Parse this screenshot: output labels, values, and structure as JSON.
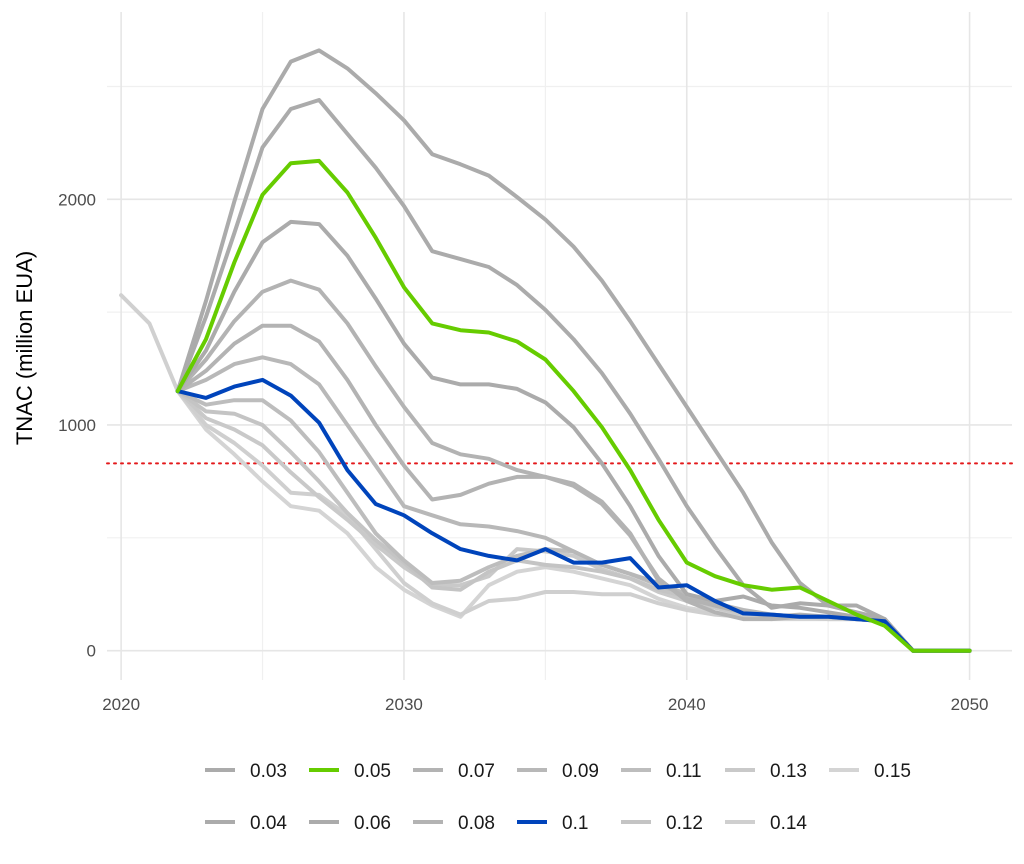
{
  "chart_data": {
    "type": "line",
    "title": "",
    "xlabel": "",
    "ylabel": "TNAC (million EUA)",
    "xlim": [
      2019.5,
      2051.5
    ],
    "ylim": [
      -130,
      2830
    ],
    "xticks": [
      2020,
      2030,
      2040,
      2050
    ],
    "yticks": [
      0,
      1000,
      2000
    ],
    "grid": true,
    "legend_position": "bottom",
    "reference_line": {
      "y": 830,
      "color": "#e31a1c",
      "style": "dotted"
    },
    "colors": {
      "grey": "#ababab",
      "green": "#66cc00",
      "blue": "#0044bb",
      "light": "#d0d0d0"
    },
    "history": {
      "x": [
        2020,
        2021,
        2022
      ],
      "y": [
        1575,
        1450,
        1150
      ]
    },
    "series": [
      {
        "name": "0.03",
        "color": "#ababab",
        "x": [
          2022,
          2023,
          2024,
          2025,
          2026,
          2027,
          2028,
          2029,
          2030,
          2031,
          2032,
          2033,
          2034,
          2035,
          2036,
          2037,
          2038,
          2039,
          2040,
          2041,
          2042,
          2043,
          2044,
          2045,
          2046,
          2047,
          2048,
          2049,
          2050
        ],
        "y": [
          1150,
          1550,
          1990,
          2400,
          2610,
          2660,
          2580,
          2470,
          2350,
          2200,
          2155,
          2105,
          2010,
          1910,
          1790,
          1640,
          1460,
          1270,
          1080,
          890,
          700,
          480,
          300,
          200,
          170,
          140,
          0,
          0,
          0
        ]
      },
      {
        "name": "0.04",
        "color": "#ababab",
        "x": [
          2022,
          2023,
          2024,
          2025,
          2026,
          2027,
          2028,
          2029,
          2030,
          2031,
          2032,
          2033,
          2034,
          2035,
          2036,
          2037,
          2038,
          2039,
          2040,
          2041,
          2042,
          2043,
          2044,
          2045,
          2046,
          2047,
          2048,
          2049,
          2050
        ],
        "y": [
          1150,
          1480,
          1850,
          2230,
          2400,
          2440,
          2290,
          2140,
          1970,
          1770,
          1735,
          1700,
          1620,
          1510,
          1380,
          1230,
          1050,
          850,
          640,
          460,
          290,
          190,
          210,
          200,
          200,
          140,
          0,
          0,
          0
        ]
      },
      {
        "name": "0.05",
        "color": "#66cc00",
        "x": [
          2022,
          2023,
          2024,
          2025,
          2026,
          2027,
          2028,
          2029,
          2030,
          2031,
          2032,
          2033,
          2034,
          2035,
          2036,
          2037,
          2038,
          2039,
          2040,
          2041,
          2042,
          2043,
          2044,
          2045,
          2046,
          2047,
          2048,
          2049,
          2050
        ],
        "y": [
          1150,
          1380,
          1720,
          2020,
          2160,
          2170,
          2030,
          1830,
          1610,
          1450,
          1420,
          1410,
          1370,
          1290,
          1150,
          990,
          800,
          580,
          390,
          330,
          290,
          270,
          280,
          220,
          160,
          110,
          0,
          0,
          0
        ]
      },
      {
        "name": "0.06",
        "color": "#ababab",
        "x": [
          2022,
          2023,
          2024,
          2025,
          2026,
          2027,
          2028,
          2029,
          2030,
          2031,
          2032,
          2033,
          2034,
          2035,
          2036,
          2037,
          2038,
          2039,
          2040,
          2041,
          2042,
          2043,
          2044,
          2045,
          2046,
          2047,
          2048,
          2049,
          2050
        ],
        "y": [
          1150,
          1330,
          1590,
          1810,
          1900,
          1890,
          1750,
          1560,
          1360,
          1210,
          1180,
          1180,
          1160,
          1100,
          990,
          830,
          640,
          420,
          250,
          220,
          240,
          200,
          190,
          170,
          150,
          140,
          0,
          0,
          0
        ]
      },
      {
        "name": "0.07",
        "color": "#b3b3b3",
        "x": [
          2022,
          2023,
          2024,
          2025,
          2026,
          2027,
          2028,
          2029,
          2030,
          2031,
          2032,
          2033,
          2034,
          2035,
          2036,
          2037,
          2038,
          2039,
          2040,
          2041,
          2042,
          2043,
          2044,
          2045,
          2046,
          2047,
          2048,
          2049,
          2050
        ],
        "y": [
          1150,
          1290,
          1460,
          1590,
          1640,
          1600,
          1450,
          1260,
          1080,
          920,
          870,
          850,
          800,
          770,
          740,
          660,
          520,
          310,
          230,
          200,
          170,
          150,
          160,
          150,
          150,
          140,
          0,
          0,
          0
        ]
      },
      {
        "name": "0.08",
        "color": "#b3b3b3",
        "x": [
          2022,
          2023,
          2024,
          2025,
          2026,
          2027,
          2028,
          2029,
          2030,
          2031,
          2032,
          2033,
          2034,
          2035,
          2036,
          2037,
          2038,
          2039,
          2040,
          2041,
          2042,
          2043,
          2044,
          2045,
          2046,
          2047,
          2048,
          2049,
          2050
        ],
        "y": [
          1150,
          1240,
          1360,
          1440,
          1440,
          1370,
          1200,
          1000,
          820,
          670,
          690,
          740,
          770,
          770,
          730,
          650,
          510,
          320,
          220,
          170,
          140,
          140,
          150,
          150,
          140,
          130,
          0,
          0,
          0
        ]
      },
      {
        "name": "0.09",
        "color": "#b8b8b8",
        "x": [
          2022,
          2023,
          2024,
          2025,
          2026,
          2027,
          2028,
          2029,
          2030,
          2031,
          2032,
          2033,
          2034,
          2035,
          2036,
          2037,
          2038,
          2039,
          2040,
          2041,
          2042,
          2043,
          2044,
          2045,
          2046,
          2047,
          2048,
          2049,
          2050
        ],
        "y": [
          1150,
          1200,
          1270,
          1300,
          1270,
          1180,
          1000,
          820,
          640,
          600,
          560,
          550,
          530,
          500,
          440,
          380,
          340,
          300,
          250,
          210,
          180,
          160,
          150,
          150,
          140,
          130,
          0,
          0,
          0
        ]
      },
      {
        "name": "0.1",
        "color": "#0044bb",
        "x": [
          2022,
          2023,
          2024,
          2025,
          2026,
          2027,
          2028,
          2029,
          2030,
          2031,
          2032,
          2033,
          2034,
          2035,
          2036,
          2037,
          2038,
          2039,
          2040,
          2041,
          2042,
          2043,
          2044,
          2045,
          2046,
          2047,
          2048,
          2049,
          2050
        ],
        "y": [
          1150,
          1120,
          1170,
          1200,
          1130,
          1010,
          800,
          650,
          600,
          520,
          450,
          420,
          400,
          450,
          390,
          390,
          410,
          280,
          290,
          220,
          165,
          160,
          150,
          150,
          140,
          130,
          0,
          0,
          0
        ]
      },
      {
        "name": "0.11",
        "color": "#bdbdbd",
        "x": [
          2022,
          2023,
          2024,
          2025,
          2026,
          2027,
          2028,
          2029,
          2030,
          2031,
          2032,
          2033,
          2034,
          2035,
          2036,
          2037,
          2038,
          2039,
          2040,
          2041,
          2042,
          2043,
          2044,
          2045,
          2046,
          2047,
          2048,
          2049,
          2050
        ],
        "y": [
          1150,
          1090,
          1110,
          1110,
          1020,
          880,
          700,
          520,
          400,
          300,
          310,
          370,
          420,
          450,
          440,
          380,
          340,
          290,
          250,
          200,
          170,
          160,
          150,
          150,
          140,
          130,
          0,
          0,
          0
        ]
      },
      {
        "name": "0.12",
        "color": "#c4c4c4",
        "x": [
          2022,
          2023,
          2024,
          2025,
          2026,
          2027,
          2028,
          2029,
          2030,
          2031,
          2032,
          2033,
          2034,
          2035,
          2036,
          2037,
          2038,
          2039,
          2040,
          2041,
          2042,
          2043,
          2044,
          2045,
          2046,
          2047,
          2048,
          2049,
          2050
        ],
        "y": [
          1150,
          1060,
          1050,
          1000,
          880,
          750,
          610,
          490,
          390,
          280,
          270,
          350,
          400,
          380,
          370,
          350,
          320,
          270,
          240,
          200,
          170,
          150,
          150,
          150,
          140,
          130,
          0,
          0,
          0
        ]
      },
      {
        "name": "0.13",
        "color": "#c9c9c9",
        "x": [
          2022,
          2023,
          2024,
          2025,
          2026,
          2027,
          2028,
          2029,
          2030,
          2031,
          2032,
          2033,
          2034,
          2035,
          2036,
          2037,
          2038,
          2039,
          2040,
          2041,
          2042,
          2043,
          2044,
          2045,
          2046,
          2047,
          2048,
          2049,
          2050
        ],
        "y": [
          1150,
          1030,
          980,
          910,
          790,
          680,
          580,
          470,
          370,
          290,
          290,
          330,
          450,
          440,
          420,
          360,
          320,
          260,
          220,
          190,
          160,
          150,
          150,
          150,
          140,
          130,
          0,
          0,
          0
        ]
      },
      {
        "name": "0.14",
        "color": "#cfcfcf",
        "x": [
          2022,
          2023,
          2024,
          2025,
          2026,
          2027,
          2028,
          2029,
          2030,
          2031,
          2032,
          2033,
          2034,
          2035,
          2036,
          2037,
          2038,
          2039,
          2040,
          2041,
          2042,
          2043,
          2044,
          2045,
          2046,
          2047,
          2048,
          2049,
          2050
        ],
        "y": [
          1150,
          1000,
          920,
          820,
          700,
          690,
          600,
          450,
          300,
          210,
          160,
          220,
          230,
          260,
          260,
          250,
          250,
          210,
          180,
          160,
          150,
          150,
          150,
          140,
          140,
          130,
          0,
          0,
          0
        ]
      },
      {
        "name": "0.15",
        "color": "#d4d4d4",
        "x": [
          2022,
          2023,
          2024,
          2025,
          2026,
          2027,
          2028,
          2029,
          2030,
          2031,
          2032,
          2033,
          2034,
          2035,
          2036,
          2037,
          2038,
          2039,
          2040,
          2041,
          2042,
          2043,
          2044,
          2045,
          2046,
          2047,
          2048,
          2049,
          2050
        ],
        "y": [
          1150,
          980,
          870,
          750,
          640,
          620,
          520,
          370,
          270,
          200,
          150,
          290,
          350,
          370,
          350,
          320,
          290,
          230,
          190,
          170,
          150,
          140,
          140,
          140,
          140,
          130,
          0,
          0,
          0
        ]
      }
    ],
    "legend": {
      "rows": [
        [
          "0.03",
          "0.05",
          "0.07",
          "0.09",
          "0.11",
          "0.13",
          "0.15"
        ],
        [
          "0.04",
          "0.06",
          "0.08",
          "0.1",
          "0.12",
          "0.14"
        ]
      ]
    }
  }
}
